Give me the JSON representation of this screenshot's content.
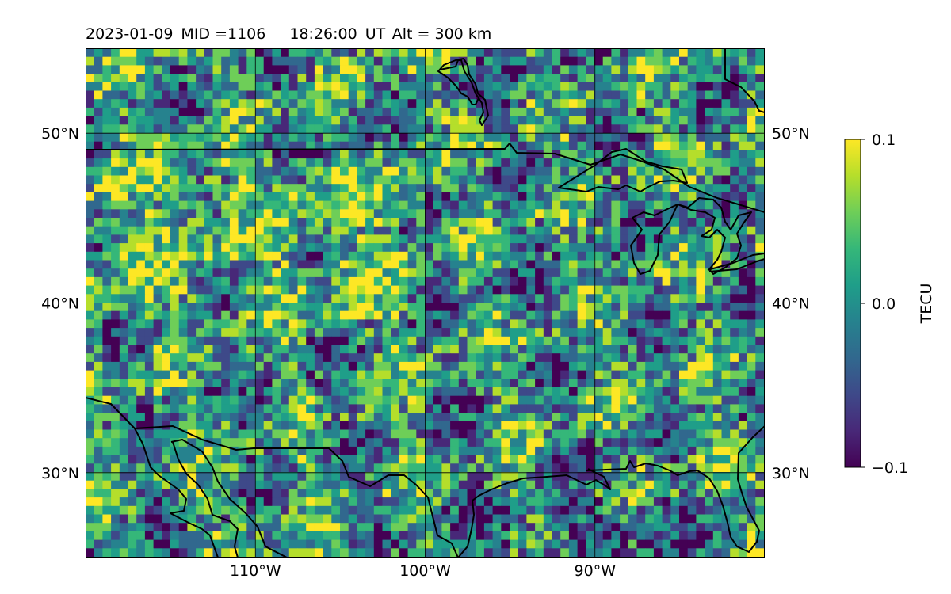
{
  "title": {
    "date": "2023-01-09",
    "mid": "MID =1106",
    "time": "18:26:00",
    "ut": "UT",
    "alt": "Alt = 300 km"
  },
  "map": {
    "lat_range": [
      25,
      55
    ],
    "lon_range": [
      -120,
      -80
    ],
    "lat_labels": [
      "50°N",
      "40°N",
      "30°N"
    ],
    "lat_values": [
      50,
      40,
      30
    ],
    "lon_labels": [
      "110°W",
      "100°W",
      "90°W"
    ],
    "lon_values": [
      -110,
      -100,
      -90
    ],
    "gridlines": true,
    "coastline_color": "#000000"
  },
  "colorbar": {
    "label": "TECU",
    "ticks": [
      "0.1",
      "0.0",
      "−0.1"
    ],
    "tick_values": [
      0.1,
      0.0,
      -0.1
    ],
    "colormap": "viridis",
    "vmin": -0.1,
    "vmax": 0.1
  },
  "colors": {
    "viridis": [
      "#440154",
      "#482878",
      "#3e4989",
      "#31688e",
      "#26828e",
      "#1f9e89",
      "#35b779",
      "#6ece58",
      "#b5de2b",
      "#fde725"
    ]
  }
}
